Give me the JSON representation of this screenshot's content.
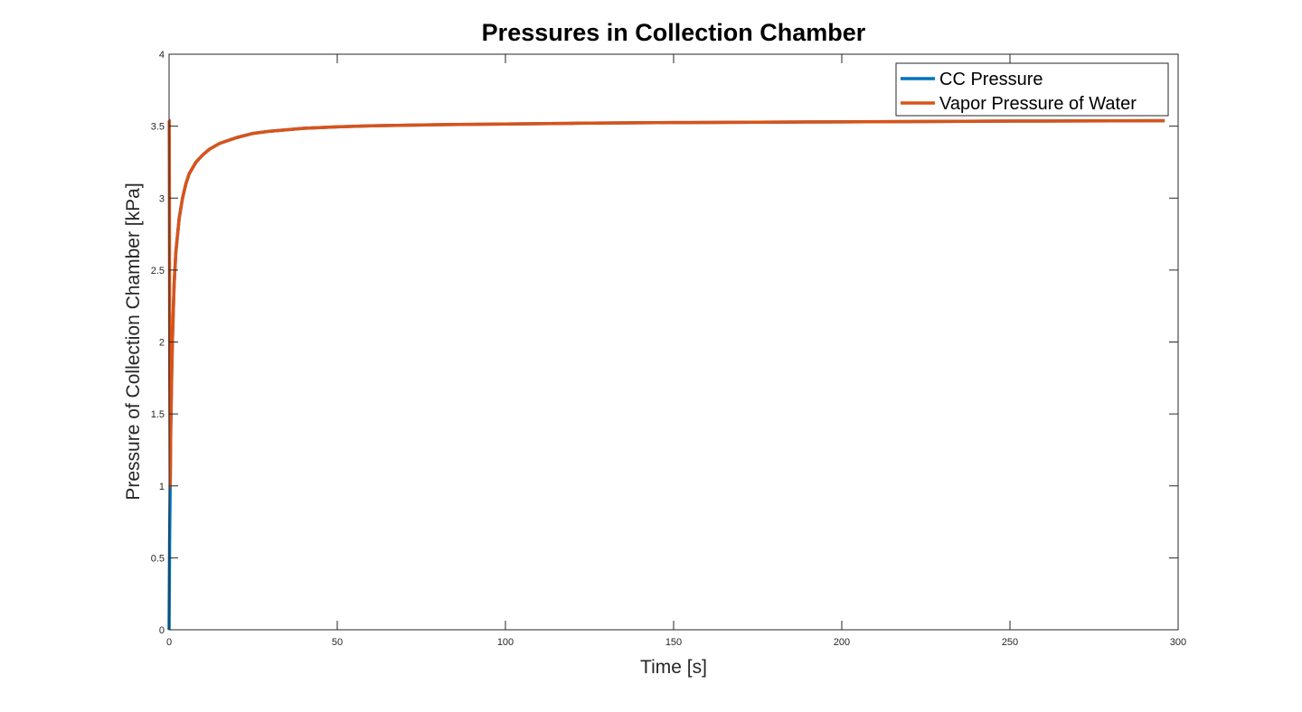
{
  "chart_data": {
    "type": "line",
    "title": "Pressures in Collection Chamber",
    "xlabel": "Time [s]",
    "ylabel": "Pressure of Collection Chamber [kPa]",
    "xlim": [
      0,
      300
    ],
    "ylim": [
      0,
      4
    ],
    "xticks": [
      0,
      50,
      100,
      150,
      200,
      250,
      300
    ],
    "yticks": [
      0,
      0.5,
      1,
      1.5,
      2,
      2.5,
      3,
      3.5,
      4
    ],
    "xtick_labels": [
      "0",
      "50",
      "100",
      "150",
      "200",
      "250",
      "300"
    ],
    "ytick_labels": [
      "0",
      "0.5",
      "1",
      "1.5",
      "2",
      "2.5",
      "3",
      "3.5",
      "4"
    ],
    "grid": false,
    "legend_position": "top-right",
    "series": [
      {
        "name": "CC Pressure",
        "color": "#0072BD",
        "x": [
          0,
          0.15,
          0.3,
          0.5,
          0.8,
          1,
          1.5,
          2,
          3,
          4,
          5,
          6,
          8,
          10,
          12,
          15,
          20,
          25,
          30,
          40,
          50,
          60,
          80,
          100,
          120,
          150,
          200,
          250,
          296
        ],
        "y": [
          0,
          0.6,
          0.95,
          1.4,
          1.8,
          2.02,
          2.4,
          2.62,
          2.86,
          3.0,
          3.1,
          3.17,
          3.25,
          3.3,
          3.34,
          3.38,
          3.42,
          3.45,
          3.465,
          3.485,
          3.495,
          3.502,
          3.51,
          3.515,
          3.52,
          3.525,
          3.53,
          3.535,
          3.538
        ]
      },
      {
        "name": "Vapor Pressure of Water",
        "color": "#D95319",
        "x": [
          0,
          0.05,
          0.2,
          0.35,
          0.5,
          0.8,
          1,
          1.5,
          2,
          3,
          4,
          5,
          6,
          8,
          10,
          12,
          15,
          20,
          25,
          30,
          40,
          50,
          60,
          80,
          100,
          120,
          150,
          200,
          250,
          296
        ],
        "y": [
          3.54,
          3.54,
          1.8,
          1.0,
          1.4,
          1.8,
          2.02,
          2.4,
          2.62,
          2.86,
          3.0,
          3.1,
          3.17,
          3.25,
          3.3,
          3.34,
          3.38,
          3.42,
          3.45,
          3.465,
          3.485,
          3.495,
          3.502,
          3.51,
          3.515,
          3.52,
          3.525,
          3.53,
          3.535,
          3.538
        ]
      }
    ]
  }
}
